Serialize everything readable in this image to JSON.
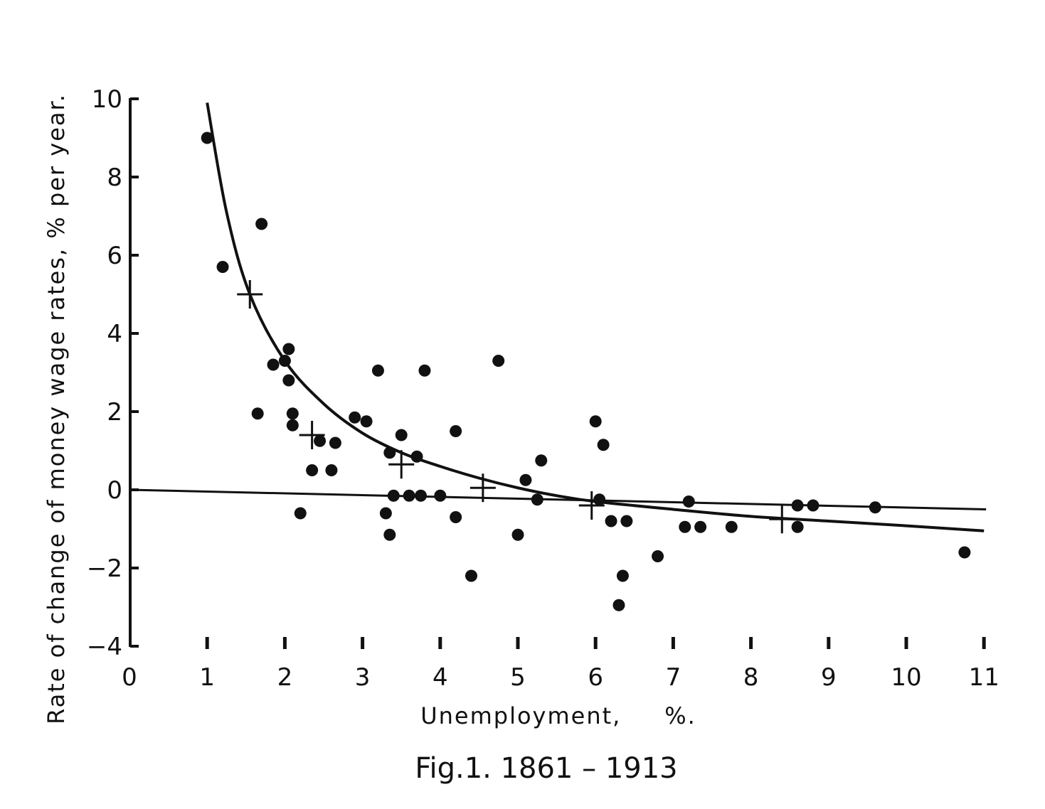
{
  "chart_data": {
    "type": "scatter",
    "title": "Fig.1. 1861 – 1913",
    "xlabel": "Unemployment,     %.",
    "ylabel": "Rate of change of money wage rates, % per year.",
    "xlim": [
      0,
      11
    ],
    "ylim": [
      -4,
      10
    ],
    "x_ticks": [
      "0",
      "1",
      "2",
      "3",
      "4",
      "5",
      "6",
      "7",
      "8",
      "9",
      "10",
      "11"
    ],
    "y_ticks": [
      "-4",
      "-2",
      "0",
      "2",
      "4",
      "6",
      "8",
      "10"
    ],
    "grid": false,
    "points": [
      {
        "x": 1.0,
        "y": 9.0
      },
      {
        "x": 1.2,
        "y": 5.7
      },
      {
        "x": 1.65,
        "y": 1.95
      },
      {
        "x": 1.7,
        "y": 6.8
      },
      {
        "x": 1.85,
        "y": 3.2
      },
      {
        "x": 2.0,
        "y": 3.3
      },
      {
        "x": 2.05,
        "y": 3.6
      },
      {
        "x": 2.05,
        "y": 2.8
      },
      {
        "x": 2.1,
        "y": 1.95
      },
      {
        "x": 2.1,
        "y": 1.65
      },
      {
        "x": 2.2,
        "y": -0.6
      },
      {
        "x": 2.35,
        "y": 0.5
      },
      {
        "x": 2.45,
        "y": 1.25
      },
      {
        "x": 2.6,
        "y": 0.5
      },
      {
        "x": 2.65,
        "y": 1.2
      },
      {
        "x": 2.9,
        "y": 1.85
      },
      {
        "x": 3.05,
        "y": 1.75
      },
      {
        "x": 3.2,
        "y": 3.05
      },
      {
        "x": 3.3,
        "y": -0.6
      },
      {
        "x": 3.35,
        "y": -1.15
      },
      {
        "x": 3.35,
        "y": 0.95
      },
      {
        "x": 3.4,
        "y": -0.15
      },
      {
        "x": 3.5,
        "y": 1.4
      },
      {
        "x": 3.6,
        "y": -0.15
      },
      {
        "x": 3.7,
        "y": 0.85
      },
      {
        "x": 3.75,
        "y": -0.15
      },
      {
        "x": 3.8,
        "y": 3.05
      },
      {
        "x": 4.0,
        "y": -0.15
      },
      {
        "x": 4.2,
        "y": 1.5
      },
      {
        "x": 4.2,
        "y": -0.7
      },
      {
        "x": 4.4,
        "y": -2.2
      },
      {
        "x": 4.75,
        "y": 3.3
      },
      {
        "x": 5.0,
        "y": -1.15
      },
      {
        "x": 5.1,
        "y": 0.25
      },
      {
        "x": 5.25,
        "y": -0.25
      },
      {
        "x": 5.3,
        "y": 0.75
      },
      {
        "x": 6.0,
        "y": 1.75
      },
      {
        "x": 6.05,
        "y": -0.25
      },
      {
        "x": 6.1,
        "y": 1.15
      },
      {
        "x": 6.2,
        "y": -0.8
      },
      {
        "x": 6.3,
        "y": -2.95
      },
      {
        "x": 6.35,
        "y": -2.2
      },
      {
        "x": 6.4,
        "y": -0.8
      },
      {
        "x": 6.8,
        "y": -1.7
      },
      {
        "x": 7.15,
        "y": -0.95
      },
      {
        "x": 7.2,
        "y": -0.3
      },
      {
        "x": 7.35,
        "y": -0.95
      },
      {
        "x": 7.75,
        "y": -0.95
      },
      {
        "x": 8.6,
        "y": -0.4
      },
      {
        "x": 8.6,
        "y": -0.95
      },
      {
        "x": 8.8,
        "y": -0.4
      },
      {
        "x": 9.6,
        "y": -0.45
      },
      {
        "x": 10.75,
        "y": -1.6
      }
    ],
    "average_crosses": [
      {
        "x": 1.55,
        "y": 5.0
      },
      {
        "x": 2.35,
        "y": 1.4
      },
      {
        "x": 3.5,
        "y": 0.65
      },
      {
        "x": 4.55,
        "y": 0.05
      },
      {
        "x": 5.95,
        "y": -0.4
      },
      {
        "x": 8.4,
        "y": -0.75
      }
    ],
    "fitted_curve": {
      "type": "hyperbolic",
      "x_range": [
        1.0,
        11.0
      ],
      "samples": [
        {
          "x": 1.0,
          "y": 9.9
        },
        {
          "x": 1.25,
          "y": 7.1
        },
        {
          "x": 1.55,
          "y": 5.0
        },
        {
          "x": 2.0,
          "y": 3.3
        },
        {
          "x": 2.5,
          "y": 2.2
        },
        {
          "x": 3.0,
          "y": 1.45
        },
        {
          "x": 3.5,
          "y": 0.95
        },
        {
          "x": 4.0,
          "y": 0.6
        },
        {
          "x": 4.5,
          "y": 0.3
        },
        {
          "x": 5.0,
          "y": 0.05
        },
        {
          "x": 5.5,
          "y": -0.15
        },
        {
          "x": 6.0,
          "y": -0.3
        },
        {
          "x": 7.0,
          "y": -0.5
        },
        {
          "x": 8.0,
          "y": -0.68
        },
        {
          "x": 9.0,
          "y": -0.8
        },
        {
          "x": 10.0,
          "y": -0.92
        },
        {
          "x": 11.0,
          "y": -1.05
        }
      ]
    },
    "reference_line": {
      "from": {
        "x": 0.0,
        "y": 0.0
      },
      "to": {
        "x": 11.0,
        "y": -0.5
      }
    }
  }
}
